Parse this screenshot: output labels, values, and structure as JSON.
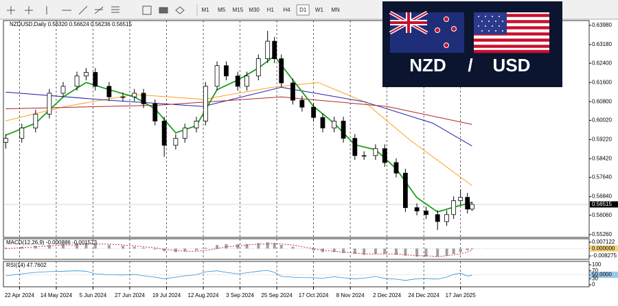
{
  "toolbar": {
    "timeframes": [
      "M1",
      "M5",
      "M15",
      "M30",
      "H1",
      "H4",
      "D1",
      "W1",
      "MN"
    ],
    "active": "D1"
  },
  "banner": {
    "base": "NZD",
    "separator": "/",
    "quote": "USD"
  },
  "chart_data": [
    {
      "type": "candlestick",
      "title": "NZDUSD,Daily",
      "quote_labels": [
        "0.56320",
        "0.56624",
        "0.56236",
        "0.56515"
      ],
      "x": [
        -6,
        1,
        7,
        13,
        19,
        25,
        29,
        33,
        39,
        45,
        50,
        54,
        59,
        63,
        68,
        72,
        77,
        81,
        86,
        90,
        95,
        99,
        104,
        108,
        111,
        114,
        119,
        123,
        128,
        132,
        137,
        141,
        146,
        150,
        155,
        159,
        164,
        168,
        173,
        177,
        182,
        186,
        189,
        192,
        195,
        197
      ],
      "open": [
        0.591,
        0.5927,
        0.597,
        0.6028,
        0.6115,
        0.6144,
        0.6187,
        0.6202,
        0.6144,
        0.61,
        0.61,
        0.6115,
        0.6071,
        0.5999,
        0.5898,
        0.5927,
        0.597,
        0.5999,
        0.6144,
        0.623,
        0.6187,
        0.6144,
        0.6187,
        0.6259,
        0.6332,
        0.6259,
        0.6158,
        0.6086,
        0.6057,
        0.6014,
        0.597,
        0.5999,
        0.5927,
        0.5855,
        0.5855,
        0.5884,
        0.5826,
        0.5782,
        0.5638,
        0.5624,
        0.5609,
        0.558,
        0.5609,
        0.5667,
        0.5681,
        0.5632
      ],
      "high": [
        0.5945,
        0.5988,
        0.6046,
        0.6133,
        0.6162,
        0.6205,
        0.622,
        0.622,
        0.6162,
        0.6118,
        0.6133,
        0.6133,
        0.6089,
        0.6017,
        0.5945,
        0.5988,
        0.6017,
        0.6162,
        0.6248,
        0.6248,
        0.6205,
        0.6205,
        0.6277,
        0.6375,
        0.635,
        0.6277,
        0.6176,
        0.6104,
        0.6075,
        0.6032,
        0.6017,
        0.6017,
        0.5945,
        0.5873,
        0.5902,
        0.5902,
        0.5844,
        0.58,
        0.5656,
        0.5642,
        0.5627,
        0.5627,
        0.5685,
        0.5715,
        0.5699,
        0.56624
      ],
      "low": [
        0.5884,
        0.5909,
        0.5952,
        0.601,
        0.6097,
        0.6126,
        0.6169,
        0.6126,
        0.6082,
        0.6082,
        0.6082,
        0.6053,
        0.5981,
        0.585,
        0.588,
        0.5909,
        0.5952,
        0.5981,
        0.6126,
        0.6169,
        0.6126,
        0.6126,
        0.6169,
        0.6241,
        0.6241,
        0.614,
        0.6068,
        0.6039,
        0.5996,
        0.5952,
        0.5952,
        0.5909,
        0.5837,
        0.5837,
        0.5837,
        0.5808,
        0.5764,
        0.562,
        0.5606,
        0.5591,
        0.5545,
        0.5562,
        0.5591,
        0.5649,
        0.5614,
        0.56236
      ],
      "close": [
        0.5927,
        0.597,
        0.6028,
        0.6115,
        0.6144,
        0.6187,
        0.6202,
        0.6144,
        0.61,
        0.61,
        0.6115,
        0.6071,
        0.5999,
        0.5898,
        0.5927,
        0.597,
        0.5999,
        0.6144,
        0.623,
        0.6187,
        0.6144,
        0.6187,
        0.6259,
        0.6332,
        0.6259,
        0.6158,
        0.6086,
        0.6057,
        0.6014,
        0.597,
        0.5999,
        0.5927,
        0.5855,
        0.5855,
        0.5884,
        0.5826,
        0.5782,
        0.5638,
        0.5624,
        0.5609,
        0.558,
        0.5609,
        0.5667,
        0.5681,
        0.5632,
        0.56515
      ],
      "colors": {
        "up": "#ffffff",
        "down": "#000000",
        "outline": "#000000"
      },
      "overlays": [
        {
          "color": "#ff9f1c",
          "x": [
            -6,
            20,
            50,
            80,
            110,
            130,
            150,
            170,
            197
          ],
          "values": [
            0.6,
            0.606,
            0.611,
            0.609,
            0.614,
            0.616,
            0.608,
            0.592,
            0.573
          ]
        },
        {
          "color": "#1f1fa8",
          "x": [
            -6,
            40,
            80,
            114,
            150,
            180,
            197
          ],
          "values": [
            0.612,
            0.6085,
            0.606,
            0.614,
            0.608,
            0.599,
            0.5895
          ]
        },
        {
          "color": "#b22222",
          "x": [
            -6,
            60,
            114,
            160,
            197
          ],
          "values": [
            0.605,
            0.6065,
            0.61,
            0.606,
            0.5985
          ]
        },
        {
          "color": "#1a9e1a",
          "x": [
            -6,
            7,
            19,
            29,
            39,
            50,
            59,
            68,
            77,
            86,
            95,
            104,
            111,
            119,
            128,
            137,
            146,
            155,
            164,
            173,
            182,
            189,
            197
          ],
          "values": [
            0.594,
            0.599,
            0.61,
            0.616,
            0.613,
            0.61,
            0.605,
            0.595,
            0.598,
            0.613,
            0.617,
            0.622,
            0.627,
            0.617,
            0.606,
            0.599,
            0.59,
            0.588,
            0.58,
            0.568,
            0.562,
            0.564,
            0.566
          ]
        }
      ],
      "last_price": {
        "value": 0.56515,
        "label": "0.56515"
      },
      "xlim": [
        -7,
        248
      ],
      "xticks": [
        {
          "value": 0,
          "label": "22 Apr 2024"
        },
        {
          "value": 16,
          "label": "14 May 2024"
        },
        {
          "value": 32,
          "label": "5 Jun 2024"
        },
        {
          "value": 48,
          "label": "27 Jun 2024"
        },
        {
          "value": 64,
          "label": "19 Jul 2024"
        },
        {
          "value": 80,
          "label": "12 Aug 2024"
        },
        {
          "value": 96,
          "label": "3 Sep 2024"
        },
        {
          "value": 112,
          "label": "25 Sep 2024"
        },
        {
          "value": 128,
          "label": "17 Oct 2024"
        },
        {
          "value": 144,
          "label": "8 Nov 2024"
        },
        {
          "value": 160,
          "label": "2 Dec 2024"
        },
        {
          "value": 176,
          "label": "24 Dec 2024"
        },
        {
          "value": 192,
          "label": "17 Jan 2025"
        }
      ],
      "ylim": [
        0.5514,
        0.6418
      ],
      "yticks": [
        {
          "value": 0.6398,
          "label": "0.63980"
        },
        {
          "value": 0.6318,
          "label": "0.63180"
        },
        {
          "value": 0.624,
          "label": "0.62400"
        },
        {
          "value": 0.616,
          "label": "0.61600"
        },
        {
          "value": 0.608,
          "label": "0.60800"
        },
        {
          "value": 0.6002,
          "label": "0.60020"
        },
        {
          "value": 0.5922,
          "label": "0.59220"
        },
        {
          "value": 0.5842,
          "label": "0.58420"
        },
        {
          "value": 0.5764,
          "label": "0.57640"
        },
        {
          "value": 0.5684,
          "label": "0.56840"
        },
        {
          "value": 0.5606,
          "label": "0.56060"
        },
        {
          "value": 0.5526,
          "label": "0.55260"
        }
      ]
    },
    {
      "type": "macd",
      "title": "MACD(12,26,9)",
      "value_labels": [
        "-0.000886",
        "-0.001573"
      ],
      "histogram": [
        0.001,
        0.002,
        0.003,
        0.004,
        0.005,
        0.006,
        0.006,
        0.005,
        0.004,
        0.003,
        0.002,
        0.001,
        -0.001,
        -0.003,
        -0.004,
        -0.003,
        -0.002,
        0.001,
        0.004,
        0.005,
        0.005,
        0.005,
        0.006,
        0.007,
        0.006,
        0.004,
        0.002,
        0.0,
        -0.002,
        -0.004,
        -0.004,
        -0.005,
        -0.006,
        -0.007,
        -0.006,
        -0.006,
        -0.007,
        -0.008,
        -0.009,
        -0.009,
        -0.009,
        -0.008,
        -0.006,
        -0.004,
        -0.002,
        -0.000886
      ],
      "signal": [
        0.0,
        0.001,
        0.002,
        0.003,
        0.004,
        0.004,
        0.005,
        0.005,
        0.005,
        0.004,
        0.003,
        0.002,
        0.001,
        -0.001,
        -0.002,
        -0.003,
        -0.003,
        -0.002,
        0.0,
        0.002,
        0.003,
        0.004,
        0.005,
        0.005,
        0.006,
        0.005,
        0.004,
        0.002,
        0.0,
        -0.002,
        -0.003,
        -0.004,
        -0.005,
        -0.006,
        -0.006,
        -0.006,
        -0.006,
        -0.007,
        -0.008,
        -0.008,
        -0.009,
        -0.008,
        -0.007,
        -0.006,
        -0.004,
        -0.001573
      ],
      "colors": {
        "histogram": "#a0a0a0",
        "signal": "#d62020"
      },
      "ylim": [
        -0.0121,
        0.011
      ],
      "yticks": [
        0.007122,
        {
          "value": 0,
          "label": "0.000000"
        },
        -0.008275
      ]
    },
    {
      "type": "rsi",
      "title": "RSI(14)",
      "value_label": "47.7602",
      "values": [
        45,
        55,
        62,
        66,
        68,
        70,
        68,
        55,
        50,
        49,
        52,
        45,
        38,
        30,
        38,
        45,
        50,
        65,
        70,
        62,
        55,
        60,
        68,
        72,
        62,
        42,
        38,
        36,
        35,
        33,
        40,
        35,
        30,
        33,
        42,
        32,
        28,
        22,
        30,
        32,
        28,
        38,
        52,
        58,
        44,
        47.7602
      ],
      "color": "#2a8fd6",
      "ylim": [
        -10,
        117
      ],
      "yticks": [
        100,
        70,
        {
          "value": 50,
          "label": "50.0000"
        },
        30,
        0
      ]
    }
  ]
}
